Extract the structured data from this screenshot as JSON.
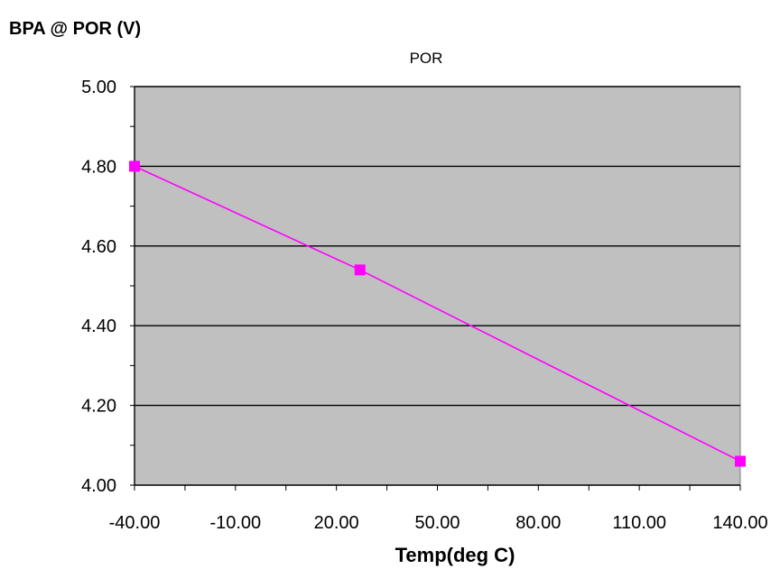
{
  "chart_data": {
    "type": "line",
    "xlabel": "Temp(deg C)",
    "ylabel": "BPA @ POR (V)",
    "xlim": [
      -40,
      140
    ],
    "ylim": [
      4.0,
      5.0
    ],
    "x_ticks": [
      "-40.00",
      "-10.00",
      "20.00",
      "50.00",
      "80.00",
      "110.00",
      "140.00"
    ],
    "y_ticks": [
      "4.00",
      "4.20",
      "4.40",
      "4.60",
      "4.80",
      "5.00"
    ],
    "grid": "horizontal major lines",
    "legend": "top-center",
    "series": [
      {
        "name": "POR",
        "color": "#ff00ff",
        "marker": "square",
        "x": [
          -40,
          27,
          140
        ],
        "y": [
          4.8,
          4.54,
          4.06
        ]
      }
    ],
    "colors": {
      "plot_background": "#c0c0c0",
      "line": "#ff00ff"
    }
  }
}
